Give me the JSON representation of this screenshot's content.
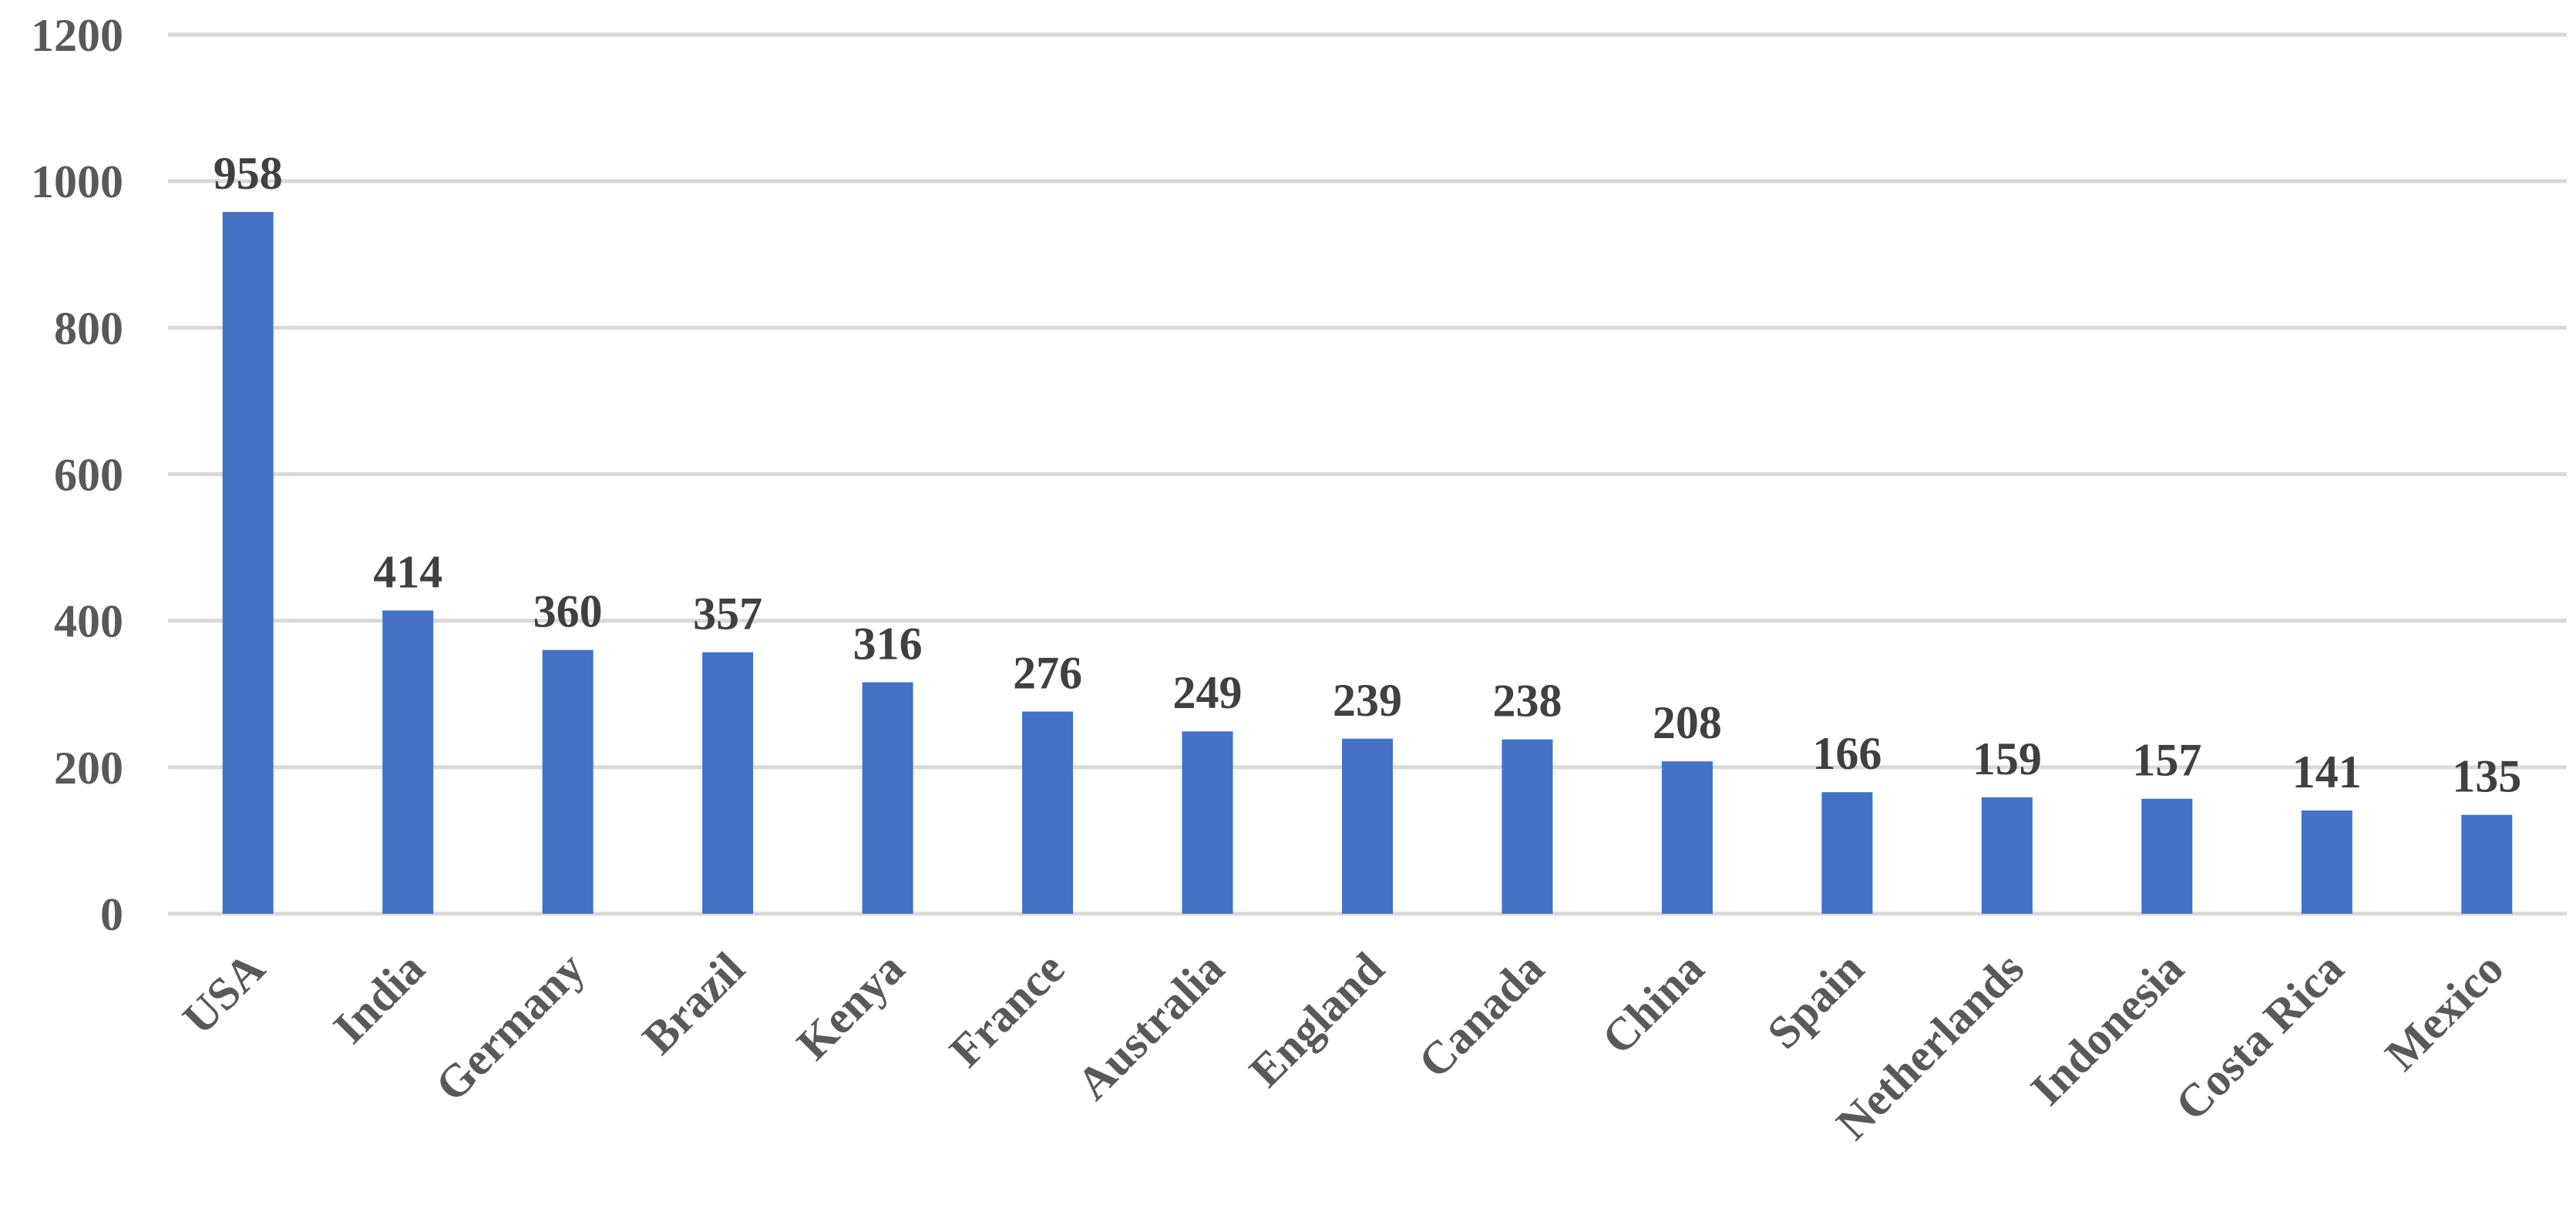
{
  "chart_data": {
    "type": "bar",
    "categories": [
      "USA",
      "India",
      "Germany",
      "Brazil",
      "Kenya",
      "France",
      "Australia",
      "England",
      "Canada",
      "China",
      "Spain",
      "Netherlands",
      "Indonesia",
      "Costa Rica",
      "Mexico"
    ],
    "values": [
      958,
      414,
      360,
      357,
      316,
      276,
      249,
      239,
      238,
      208,
      166,
      159,
      157,
      141,
      135
    ],
    "data_labels": [
      "958",
      "414",
      "360",
      "357",
      "316",
      "276",
      "249",
      "239",
      "238",
      "208",
      "166",
      "159",
      "157",
      "141",
      "135"
    ],
    "title": "",
    "xlabel": "",
    "ylabel": "",
    "ylim": [
      0,
      1200
    ],
    "yticks": [
      0,
      200,
      400,
      600,
      800,
      1000,
      1200
    ],
    "ytick_labels": [
      "0",
      "200",
      "400",
      "600",
      "800",
      "1000",
      "1200"
    ],
    "grid": true,
    "legend": "none",
    "bar_color": "#4472C4",
    "grid_color": "#D9D9D9",
    "tick_label_color": "#595959",
    "data_label_color": "#404040"
  }
}
